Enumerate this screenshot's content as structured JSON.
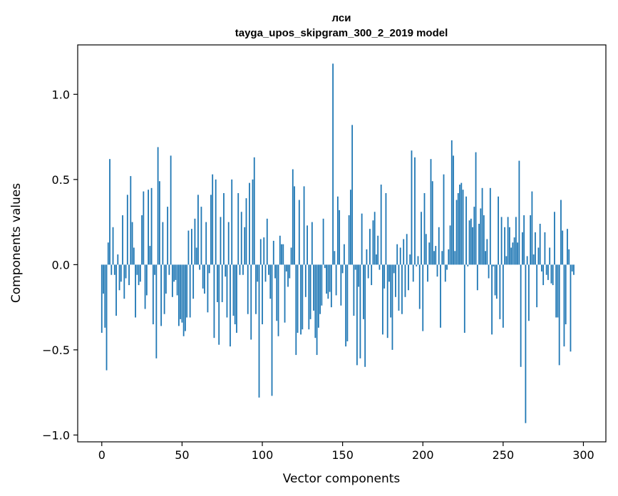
{
  "chart_data": {
    "type": "bar",
    "title": "лси",
    "subtitle": "tayga_upos_skipgram_300_2_2019 model",
    "xlabel": "Vector components",
    "ylabel": "Components values",
    "xlim": [
      -15,
      314
    ],
    "ylim": [
      -1.04,
      1.29
    ],
    "xticks": [
      0,
      50,
      100,
      150,
      200,
      250,
      300
    ],
    "xtick_labels": [
      "0",
      "50",
      "100",
      "150",
      "200",
      "250",
      "300"
    ],
    "yticks": [
      -1.0,
      -0.5,
      0.0,
      0.5,
      1.0
    ],
    "ytick_labels": [
      "−1.0",
      "−0.5",
      "0.0",
      "0.5",
      "1.0"
    ],
    "bar_color": "#1f77b4",
    "grid": false,
    "series": [
      {
        "values": [
          -0.4,
          -0.17,
          -0.37,
          -0.62,
          0.13,
          0.62,
          -0.06,
          0.22,
          -0.06,
          -0.3,
          0.06,
          -0.15,
          -0.1,
          0.29,
          -0.2,
          -0.08,
          0.41,
          -0.12,
          0.52,
          0.25,
          0.1,
          -0.31,
          -0.06,
          -0.12,
          -0.1,
          0.29,
          0.43,
          -0.26,
          -0.18,
          0.44,
          0.11,
          0.45,
          -0.35,
          -0.06,
          -0.55,
          0.69,
          0.49,
          -0.36,
          0.25,
          -0.29,
          -0.17,
          0.34,
          -0.06,
          0.64,
          -0.19,
          -0.1,
          -0.09,
          -0.18,
          -0.36,
          -0.32,
          -0.34,
          -0.42,
          -0.39,
          -0.31,
          0.2,
          -0.31,
          0.21,
          -0.2,
          0.27,
          0.1,
          0.41,
          -0.03,
          0.34,
          -0.14,
          -0.17,
          0.25,
          -0.28,
          -0.05,
          0.41,
          0.53,
          -0.43,
          0.5,
          -0.22,
          -0.47,
          0.28,
          -0.22,
          0.42,
          -0.07,
          -0.31,
          0.25,
          -0.48,
          0.5,
          -0.3,
          -0.35,
          -0.4,
          0.42,
          -0.06,
          0.31,
          -0.06,
          0.22,
          0.39,
          -0.29,
          0.48,
          -0.44,
          0.5,
          0.63,
          -0.29,
          -0.1,
          -0.78,
          0.15,
          -0.35,
          0.16,
          -0.1,
          0.27,
          -0.06,
          -0.2,
          -0.77,
          0.14,
          -0.08,
          -0.33,
          -0.42,
          0.17,
          0.12,
          0.12,
          -0.34,
          -0.04,
          -0.13,
          -0.08,
          0.1,
          0.56,
          0.46,
          -0.53,
          -0.4,
          0.38,
          -0.41,
          -0.38,
          0.46,
          -0.19,
          0.23,
          -0.38,
          -0.32,
          0.25,
          -0.27,
          -0.43,
          -0.53,
          -0.37,
          -0.29,
          -0.24,
          0.27,
          -0.02,
          -0.17,
          -0.2,
          -0.16,
          -0.25,
          1.18,
          0.08,
          -0.18,
          0.4,
          0.32,
          -0.24,
          -0.05,
          0.12,
          -0.48,
          -0.45,
          0.29,
          0.44,
          0.82,
          -0.3,
          -0.03,
          -0.59,
          -0.13,
          -0.55,
          0.3,
          -0.32,
          -0.6,
          0.09,
          -0.08,
          0.21,
          -0.12,
          0.26,
          0.31,
          0.06,
          0.17,
          -0.03,
          0.47,
          -0.41,
          -0.14,
          0.42,
          -0.43,
          -0.1,
          -0.31,
          -0.5,
          -0.05,
          -0.19,
          0.12,
          -0.27,
          0.1,
          -0.29,
          0.15,
          -0.19,
          0.18,
          -0.15,
          0.06,
          0.67,
          -0.1,
          0.63,
          -0.01,
          0.05,
          -0.26,
          0.31,
          -0.39,
          0.42,
          0.18,
          -0.1,
          0.13,
          0.62,
          0.49,
          0.08,
          0.11,
          -0.07,
          0.22,
          -0.37,
          0.08,
          0.53,
          -0.1,
          -0.03,
          0.09,
          0.23,
          0.73,
          0.64,
          0.08,
          0.38,
          0.42,
          0.47,
          0.48,
          0.44,
          -0.4,
          0.4,
          -0.01,
          0.26,
          0.27,
          0.22,
          0.34,
          0.66,
          -0.15,
          0.24,
          0.33,
          0.45,
          0.29,
          0.08,
          0.15,
          -0.08,
          0.45,
          -0.41,
          -0.01,
          -0.18,
          -0.2,
          0.4,
          -0.32,
          0.28,
          -0.37,
          0.22,
          0.05,
          0.28,
          0.22,
          0.1,
          0.13,
          0.16,
          0.28,
          0.13,
          0.61,
          -0.6,
          0.19,
          0.29,
          -0.93,
          0.05,
          -0.33,
          0.29,
          0.43,
          0.06,
          0.19,
          -0.25,
          0.1,
          0.24,
          -0.04,
          -0.12,
          0.19,
          -0.06,
          -0.09,
          0.1,
          -0.11,
          -0.12,
          0.31,
          -0.31,
          -0.31,
          -0.59,
          0.38,
          0.2,
          -0.48,
          -0.35,
          0.21,
          0.09,
          -0.51,
          -0.04,
          -0.06
        ]
      }
    ]
  }
}
